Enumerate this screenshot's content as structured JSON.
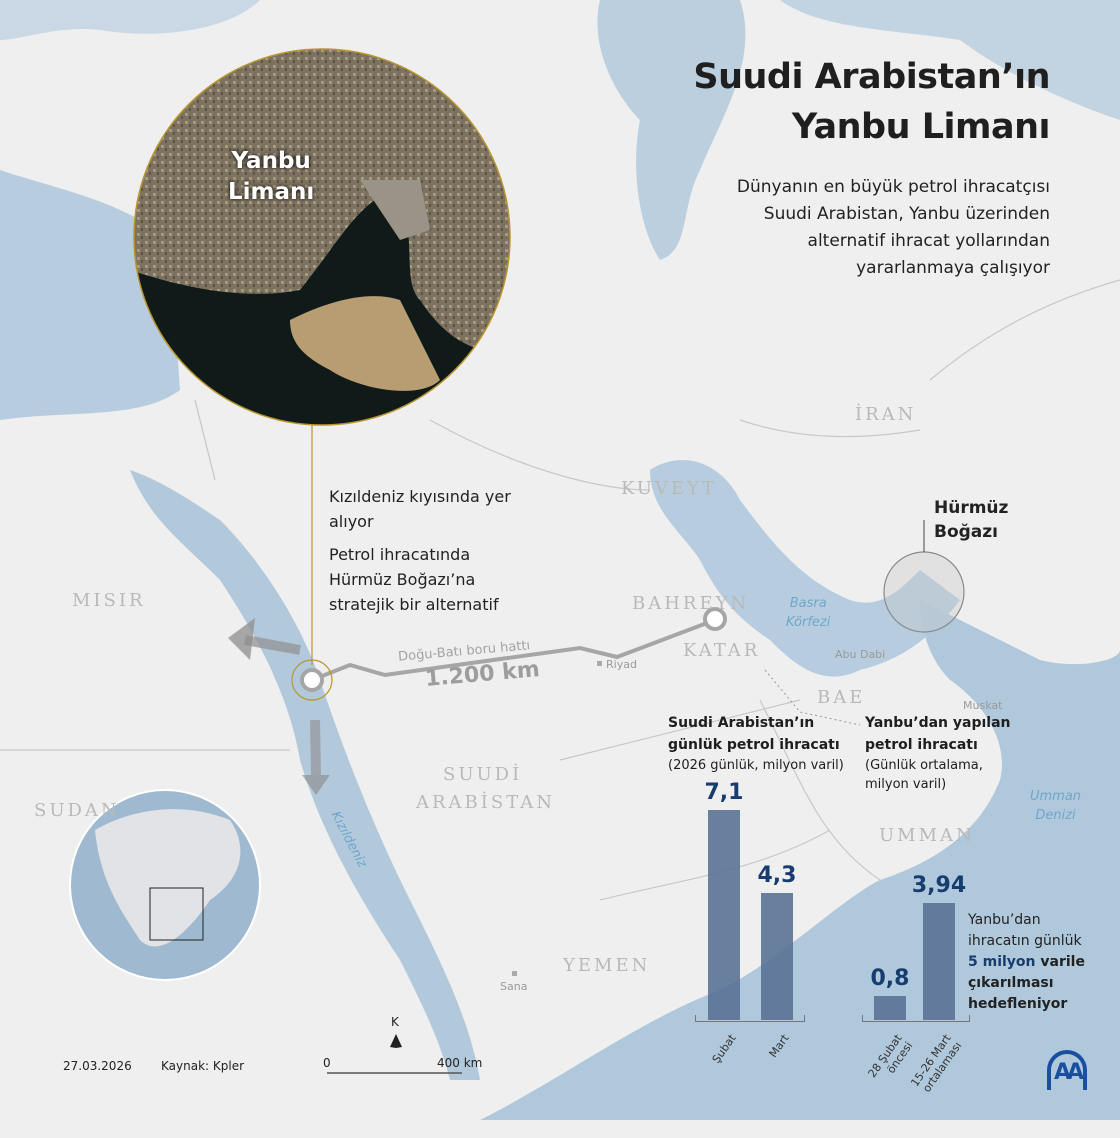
{
  "header": {
    "title_line1": "Suudi Arabistan’ın",
    "title_line2": "Yanbu Limanı",
    "subtitle_lines": [
      "Dünyanın en büyük petrol ihracatçısı",
      "Suudi Arabistan, Yanbu üzerinden",
      "alternatif ihracat yollarından",
      "yararlanmaya çalışıyor"
    ]
  },
  "inset": {
    "label_line1": "Yanbu",
    "label_line2": "Limanı"
  },
  "info": {
    "point1": "Kızıldeniz kıyısında yer alıyor",
    "point2": "Petrol ihracatında Hürmüz Boğazı’na stratejik bir alternatif"
  },
  "map": {
    "countries": [
      "İRAN",
      "KUVEYT",
      "BAHREYN",
      "KATAR",
      "BAE",
      "MISIR",
      "SUDAN",
      "SUUDİ",
      "ARABİSTAN",
      "UMMAN",
      "YEMEN"
    ],
    "seas": {
      "basra_line1": "Basra",
      "basra_line2": "Körfezi",
      "umman_line1": "Umman",
      "umman_line2": "Denizi",
      "kizildeniz": "Kızıldeniz"
    },
    "cities": [
      "Riyad",
      "Abu Dabi",
      "Muskat",
      "Sana"
    ],
    "hormuz_line1": "Hürmüz",
    "hormuz_line2": "Boğazı",
    "pipeline_name": "Doğu-Batı boru hattı",
    "pipeline_length": "1.200 km",
    "north_label": "K",
    "scale_start": "0",
    "scale_end": "400 km"
  },
  "chart_data": [
    {
      "type": "bar",
      "title": "Suudi Arabistan’ın günlük petrol ihracatı",
      "subtitle": "(2026 günlük, milyon varil)",
      "categories": [
        "Şubat",
        "Mart"
      ],
      "values": [
        7.1,
        4.3
      ],
      "value_labels": [
        "7,1",
        "4,3"
      ]
    },
    {
      "type": "bar",
      "title": "Yanbu’dan yapılan petrol ihracatı",
      "subtitle": "(Günlük ortalama, milyon varil)",
      "categories": [
        "28 Şubat öncesi",
        "15-26 Mart ortalaması"
      ],
      "values": [
        0.8,
        3.94
      ],
      "value_labels": [
        "0,8",
        "3,94"
      ]
    }
  ],
  "note": {
    "line1": "Yanbu’dan",
    "line2": "ihracatın günlük",
    "highlight": "5 milyon",
    "line3_rest": " varile",
    "line4": "çıkarılması",
    "line5": "hedefleniyor"
  },
  "footer": {
    "date": "27.03.2026",
    "source": "Kaynak: Kpler",
    "logo": "AA"
  },
  "colors": {
    "land": "#efeff0",
    "sea": "#b7cddf",
    "bar": "#5a7295",
    "value": "#173c6e",
    "accent_gold": "#b8952f"
  }
}
